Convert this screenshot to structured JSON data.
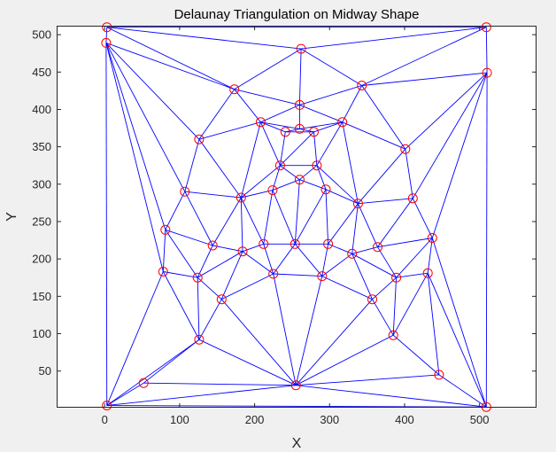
{
  "chart_data": {
    "type": "scatter",
    "title": "Delaunay Triangulation on Midway Shape",
    "xlabel": "X",
    "ylabel": "Y",
    "xlim": [
      -64,
      576
    ],
    "ylim": [
      1,
      512
    ],
    "xticks": [
      0,
      100,
      200,
      300,
      400,
      500
    ],
    "yticks": [
      50,
      100,
      150,
      200,
      250,
      300,
      350,
      400,
      450,
      500
    ],
    "grid": false,
    "edge_color": "#0000ff",
    "vertex_color": "#ff0000",
    "vertex_marker": "circle",
    "points": [
      [
        3,
        510
      ],
      [
        509,
        510
      ],
      [
        2,
        489
      ],
      [
        262,
        481
      ],
      [
        510,
        449
      ],
      [
        343,
        432
      ],
      [
        173,
        427
      ],
      [
        260,
        406
      ],
      [
        208,
        383
      ],
      [
        317,
        383
      ],
      [
        126,
        360
      ],
      [
        260,
        374
      ],
      [
        241,
        370
      ],
      [
        279,
        370
      ],
      [
        401,
        347
      ],
      [
        234,
        325
      ],
      [
        283,
        325
      ],
      [
        260,
        306
      ],
      [
        107,
        290
      ],
      [
        295,
        293
      ],
      [
        224,
        292
      ],
      [
        182,
        282
      ],
      [
        338,
        274
      ],
      [
        411,
        281
      ],
      [
        81,
        239
      ],
      [
        144,
        218
      ],
      [
        212,
        220
      ],
      [
        254,
        220
      ],
      [
        298,
        220
      ],
      [
        364,
        216
      ],
      [
        437,
        228
      ],
      [
        184,
        210
      ],
      [
        330,
        207
      ],
      [
        78,
        183
      ],
      [
        124,
        175
      ],
      [
        225,
        180
      ],
      [
        290,
        177
      ],
      [
        389,
        175
      ],
      [
        431,
        181
      ],
      [
        156,
        146
      ],
      [
        357,
        146
      ],
      [
        126,
        92
      ],
      [
        385,
        98
      ],
      [
        52,
        34
      ],
      [
        446,
        45
      ],
      [
        255,
        31
      ],
      [
        3,
        4
      ],
      [
        509,
        2
      ]
    ],
    "triangles": [
      [
        0,
        1,
        3
      ],
      [
        0,
        2,
        6
      ],
      [
        0,
        3,
        6
      ],
      [
        1,
        3,
        5
      ],
      [
        1,
        4,
        5
      ],
      [
        3,
        5,
        7
      ],
      [
        3,
        6,
        7
      ],
      [
        6,
        7,
        8
      ],
      [
        5,
        7,
        9
      ],
      [
        7,
        8,
        11
      ],
      [
        7,
        9,
        11
      ],
      [
        8,
        11,
        12
      ],
      [
        9,
        11,
        13
      ],
      [
        2,
        6,
        10
      ],
      [
        6,
        8,
        10
      ],
      [
        5,
        9,
        14
      ],
      [
        4,
        5,
        14
      ],
      [
        11,
        12,
        13
      ],
      [
        12,
        13,
        15
      ],
      [
        13,
        15,
        16
      ],
      [
        8,
        12,
        15
      ],
      [
        9,
        13,
        16
      ],
      [
        15,
        16,
        17
      ],
      [
        8,
        15,
        21
      ],
      [
        8,
        10,
        21
      ],
      [
        10,
        18,
        21
      ],
      [
        2,
        10,
        18
      ],
      [
        15,
        20,
        21
      ],
      [
        15,
        17,
        20
      ],
      [
        16,
        17,
        19
      ],
      [
        9,
        16,
        22
      ],
      [
        16,
        19,
        22
      ],
      [
        9,
        14,
        22
      ],
      [
        14,
        22,
        23
      ],
      [
        4,
        14,
        23
      ],
      [
        4,
        23,
        30
      ],
      [
        2,
        18,
        24
      ],
      [
        18,
        21,
        25
      ],
      [
        18,
        24,
        25
      ],
      [
        20,
        21,
        26
      ],
      [
        17,
        20,
        27
      ],
      [
        20,
        26,
        27
      ],
      [
        17,
        19,
        27
      ],
      [
        19,
        27,
        28
      ],
      [
        19,
        22,
        28
      ],
      [
        22,
        23,
        29
      ],
      [
        23,
        29,
        30
      ],
      [
        21,
        25,
        31
      ],
      [
        21,
        26,
        31
      ],
      [
        22,
        28,
        32
      ],
      [
        22,
        29,
        32
      ],
      [
        2,
        24,
        33
      ],
      [
        24,
        25,
        34
      ],
      [
        24,
        33,
        34
      ],
      [
        25,
        31,
        34
      ],
      [
        26,
        31,
        35
      ],
      [
        26,
        27,
        35
      ],
      [
        27,
        35,
        36
      ],
      [
        27,
        28,
        36
      ],
      [
        28,
        32,
        36
      ],
      [
        32,
        36,
        40
      ],
      [
        29,
        32,
        37
      ],
      [
        32,
        37,
        40
      ],
      [
        29,
        30,
        37
      ],
      [
        30,
        37,
        38
      ],
      [
        31,
        34,
        39
      ],
      [
        31,
        35,
        39
      ],
      [
        36,
        40,
        45
      ],
      [
        35,
        36,
        45
      ],
      [
        35,
        39,
        45
      ],
      [
        34,
        39,
        41
      ],
      [
        33,
        34,
        41
      ],
      [
        39,
        41,
        45
      ],
      [
        37,
        38,
        42
      ],
      [
        37,
        40,
        42
      ],
      [
        40,
        42,
        45
      ],
      [
        38,
        42,
        44
      ],
      [
        30,
        38,
        47
      ],
      [
        4,
        30,
        47
      ],
      [
        38,
        44,
        47
      ],
      [
        42,
        44,
        45
      ],
      [
        44,
        45,
        47
      ],
      [
        41,
        45,
        46
      ],
      [
        41,
        43,
        46
      ],
      [
        33,
        41,
        46
      ],
      [
        2,
        33,
        46
      ],
      [
        43,
        45,
        46
      ],
      [
        45,
        46,
        47
      ]
    ]
  }
}
